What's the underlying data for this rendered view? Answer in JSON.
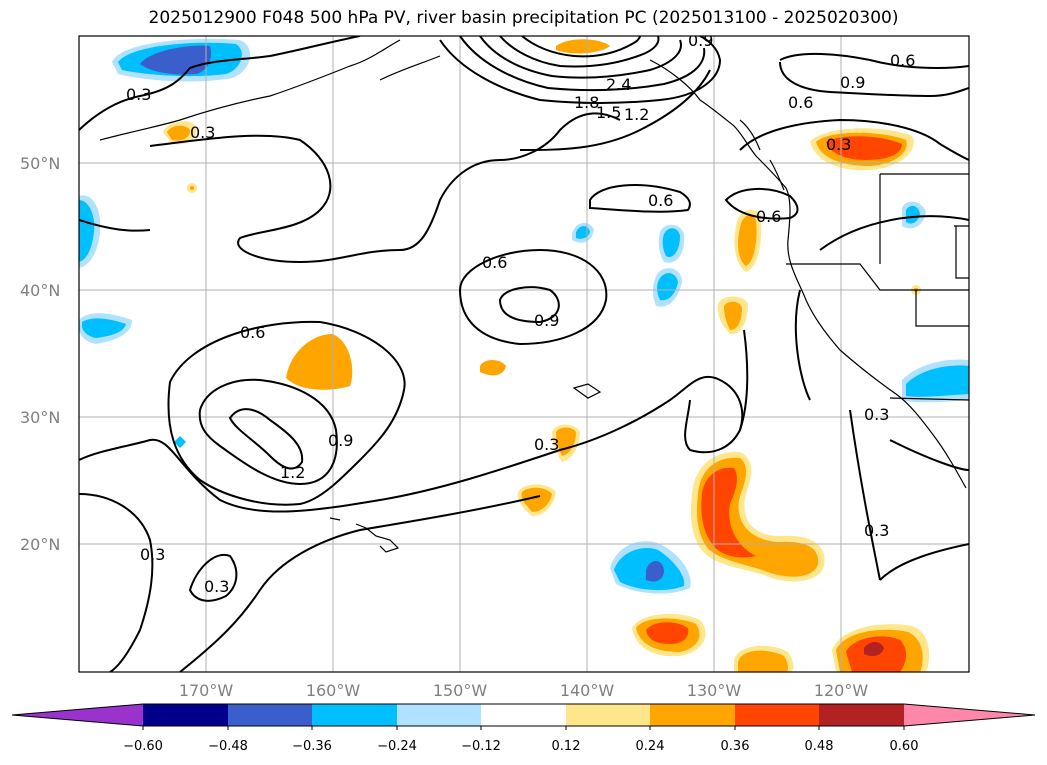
{
  "title": "2025012900 F048 500 hPa PV, river basin precipitation PC (2025013100 - 2025020300)",
  "map": {
    "lat_labels": [
      "50°N",
      "40°N",
      "30°N",
      "20°N"
    ],
    "lon_labels": [
      "170°W",
      "160°W",
      "150°W",
      "140°W",
      "130°W",
      "120°W"
    ],
    "contour_labels": [
      "0.3",
      "0.3",
      "0.6",
      "0.6",
      "0.6",
      "0.9",
      "0.9",
      "0.6",
      "0.6",
      "0.9",
      "1.2",
      "0.3",
      "0.3",
      "0.3",
      "0.3",
      "0.3",
      "0.3",
      "2.4",
      "1.8",
      "1.5",
      "1.2",
      "0.9",
      "0.6"
    ]
  },
  "colorbar": {
    "ticks": [
      "−0.60",
      "−0.48",
      "−0.36",
      "−0.24",
      "−0.12",
      "0.12",
      "0.24",
      "0.36",
      "0.48",
      "0.60"
    ],
    "colors": [
      "#9933cc",
      "#00008b",
      "#3a5fcd",
      "#00bfff",
      "#b0e2ff",
      "#ffffff",
      "#ffe68a",
      "#ffa500",
      "#ff4500",
      "#b22222",
      "#ff88aa",
      "#ff88aa"
    ]
  },
  "colors": {
    "lightblue": "#b0e2ff",
    "blue": "#00bfff",
    "royal": "#3a5fcd",
    "yellow": "#ffe68a",
    "orange": "#ffa500",
    "red": "#ff4500",
    "darkred": "#b22222"
  }
}
